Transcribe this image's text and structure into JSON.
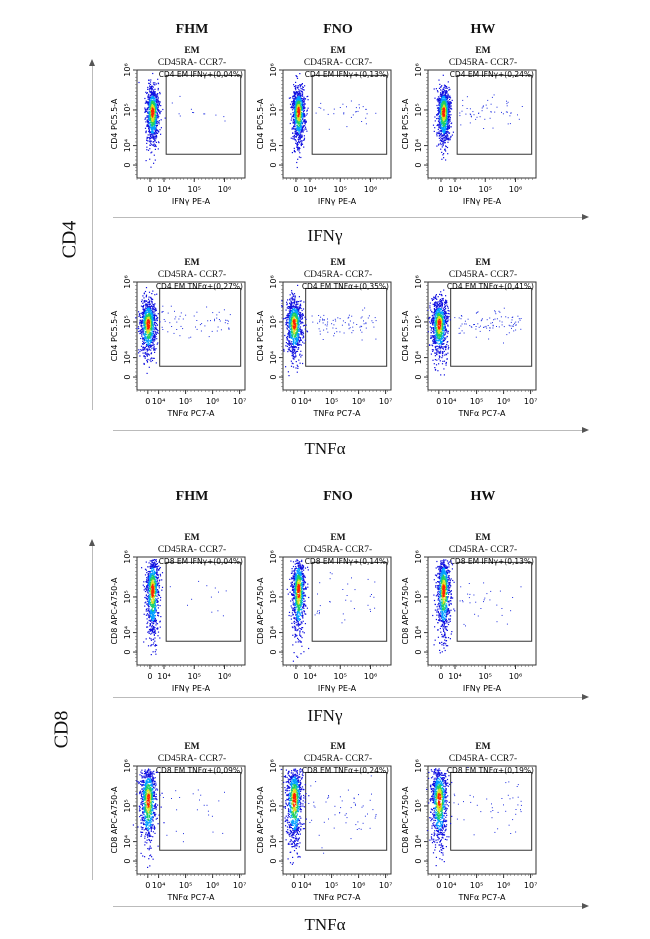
{
  "column_headers": [
    "FHM",
    "FNO",
    "HW"
  ],
  "panel_title_line1": "EM",
  "panel_title_line2": "CD45RA- CCR7-",
  "section_labels": {
    "cd4": "CD4",
    "cd8": "CD8"
  },
  "axis_group_labels": {
    "ifn": "IFNγ",
    "tnf": "TNFα"
  },
  "chart_data": {
    "type": "scatter",
    "subtype": "flow-cytometry-density-dotplot",
    "x_ticks": {
      "ifn": [
        "0",
        "10⁴",
        "10⁵",
        "10⁶"
      ],
      "tnf": [
        "0",
        "10⁴",
        "10⁵",
        "10⁶",
        "10⁷"
      ]
    },
    "y_ticks": [
      "0",
      "10⁴",
      "10⁵",
      "10⁶"
    ],
    "x_labels": {
      "ifn": "IFNγ PE-A",
      "tnf": "TNFα PC7-A"
    },
    "y_labels": {
      "cd4": "CD4 PC5.5-A",
      "cd8": "CD8 APC-A750-A"
    },
    "rows": [
      {
        "section": "cd4",
        "stain": "ifn",
        "panels": [
          {
            "gate": "CD4 EM IFNγ+(0,04%)",
            "percent": 0.04
          },
          {
            "gate": "CD4 EM IFNγ+(0,13%)",
            "percent": 0.13
          },
          {
            "gate": "CD4 EM IFNγ+(0,24%)",
            "percent": 0.24
          }
        ]
      },
      {
        "section": "cd4",
        "stain": "tnf",
        "panels": [
          {
            "gate": "CD4 EM TNFα+(0,27%)",
            "percent": 0.27
          },
          {
            "gate": "CD4 EM TNFα+(0,35%)",
            "percent": 0.35
          },
          {
            "gate": "CD4 EM TNFα+(0,41%)",
            "percent": 0.41
          }
        ]
      },
      {
        "section": "cd8",
        "stain": "ifn",
        "panels": [
          {
            "gate": "CD8 EM IFNγ+(0,04%)",
            "percent": 0.04
          },
          {
            "gate": "CD8 EM IFNγ+(0,14%)",
            "percent": 0.14
          },
          {
            "gate": "CD8 EM IFNγ+(0,13%)",
            "percent": 0.13
          }
        ]
      },
      {
        "section": "cd8",
        "stain": "tnf",
        "panels": [
          {
            "gate": "CD8 EM TNFα+(0,09%)",
            "percent": 0.09
          },
          {
            "gate": "CD8 EM TNFα+(0,24%)",
            "percent": 0.24
          },
          {
            "gate": "CD8 EM TNFα+(0,19%)",
            "percent": 0.19
          }
        ]
      }
    ],
    "density_colors": [
      "#1010e0",
      "#00a0ff",
      "#20d060",
      "#e0e020",
      "#ff2000"
    ]
  }
}
